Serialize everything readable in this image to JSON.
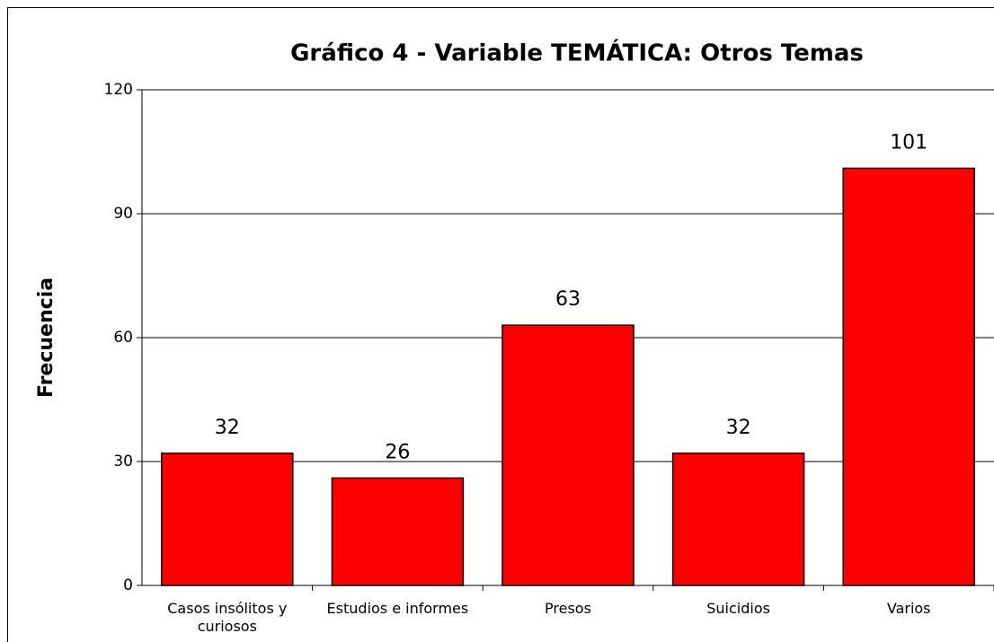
{
  "chart_data": {
    "type": "bar",
    "title": "Gráfico 4 - Variable TEMÁTICA: Otros Temas",
    "y_label": "Frecuencia",
    "categories": [
      "Casos insólitos y curiosos",
      "Estudios e informes",
      "Presos",
      "Suicidios",
      "Varios"
    ],
    "values": [
      32,
      26,
      63,
      32,
      101
    ],
    "color": "#ff0000",
    "ylim": [
      0,
      120
    ],
    "yticks": [
      0,
      30,
      60,
      90,
      120
    ],
    "grid": true
  }
}
